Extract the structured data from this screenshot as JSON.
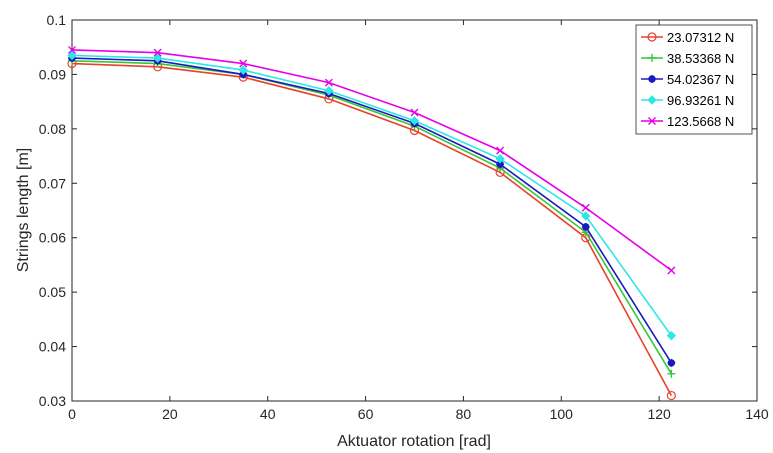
{
  "chart_data": {
    "type": "line",
    "xlabel": "Aktuator rotation [rad]",
    "ylabel": "Strings length [m]",
    "xlim": [
      0,
      140
    ],
    "ylim": [
      0.03,
      0.1
    ],
    "xticks": [
      0,
      20,
      40,
      60,
      80,
      100,
      120,
      140
    ],
    "yticks": [
      0.03,
      0.04,
      0.05,
      0.06,
      0.07,
      0.08,
      0.09,
      0.1
    ],
    "xtick_labels": [
      "0",
      "20",
      "40",
      "60",
      "80",
      "100",
      "120",
      "140"
    ],
    "ytick_labels": [
      "0.03",
      "0.04",
      "0.05",
      "0.06",
      "0.07",
      "0.08",
      "0.09",
      "0.1"
    ],
    "grid": false,
    "legend_position": "top-right",
    "x": [
      0,
      17.5,
      35,
      52.5,
      70,
      87.5,
      105,
      122.5
    ],
    "series": [
      {
        "name": "23.07312 N",
        "color": "#e8412c",
        "marker": "circle",
        "values": [
          0.092,
          0.0914,
          0.0895,
          0.0855,
          0.0797,
          0.072,
          0.06,
          0.031
        ]
      },
      {
        "name": "38.53368 N",
        "color": "#34c934",
        "marker": "plus",
        "values": [
          0.0925,
          0.092,
          0.09,
          0.0862,
          0.0805,
          0.0728,
          0.061,
          0.035
        ]
      },
      {
        "name": "54.02367 N",
        "color": "#1a1ac0",
        "marker": "star",
        "values": [
          0.093,
          0.0925,
          0.09,
          0.0865,
          0.081,
          0.0735,
          0.062,
          0.037
        ]
      },
      {
        "name": "96.93261 N",
        "color": "#2ee6e6",
        "marker": "diamond",
        "values": [
          0.0935,
          0.093,
          0.0908,
          0.087,
          0.0815,
          0.0745,
          0.064,
          0.042
        ]
      },
      {
        "name": "123.5668 N",
        "color": "#e600e6",
        "marker": "x",
        "values": [
          0.0945,
          0.094,
          0.092,
          0.0885,
          0.083,
          0.076,
          0.0655,
          0.054
        ]
      }
    ]
  }
}
